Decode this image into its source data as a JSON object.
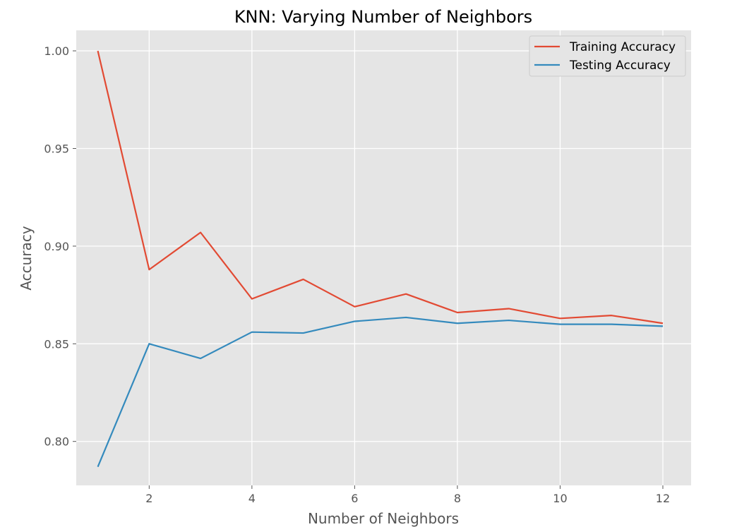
{
  "chart_data": {
    "type": "line",
    "title": "KNN: Varying Number of Neighbors",
    "xlabel": "Number of Neighbors",
    "ylabel": "Accuracy",
    "x": [
      1,
      2,
      3,
      4,
      5,
      6,
      7,
      8,
      9,
      10,
      11,
      12
    ],
    "xlim": [
      0.58,
      12.55
    ],
    "ylim": [
      0.7775,
      1.0105
    ],
    "xticks": [
      2,
      4,
      6,
      8,
      10,
      12
    ],
    "xtick_labels": [
      "2",
      "4",
      "6",
      "8",
      "10",
      "12"
    ],
    "yticks": [
      0.8,
      0.85,
      0.9,
      0.95,
      1.0
    ],
    "ytick_labels": [
      "0.80",
      "0.85",
      "0.90",
      "0.95",
      "1.00"
    ],
    "grid": true,
    "legend_position": "top-right",
    "series": [
      {
        "name": "Training Accuracy",
        "color": "#E24A33",
        "values": [
          1.0,
          0.888,
          0.907,
          0.873,
          0.883,
          0.869,
          0.8755,
          0.866,
          0.868,
          0.863,
          0.8645,
          0.8605
        ]
      },
      {
        "name": "Testing Accuracy",
        "color": "#348ABD",
        "values": [
          0.787,
          0.85,
          0.8425,
          0.856,
          0.8555,
          0.8615,
          0.8635,
          0.8605,
          0.862,
          0.86,
          0.86,
          0.859
        ]
      }
    ]
  }
}
